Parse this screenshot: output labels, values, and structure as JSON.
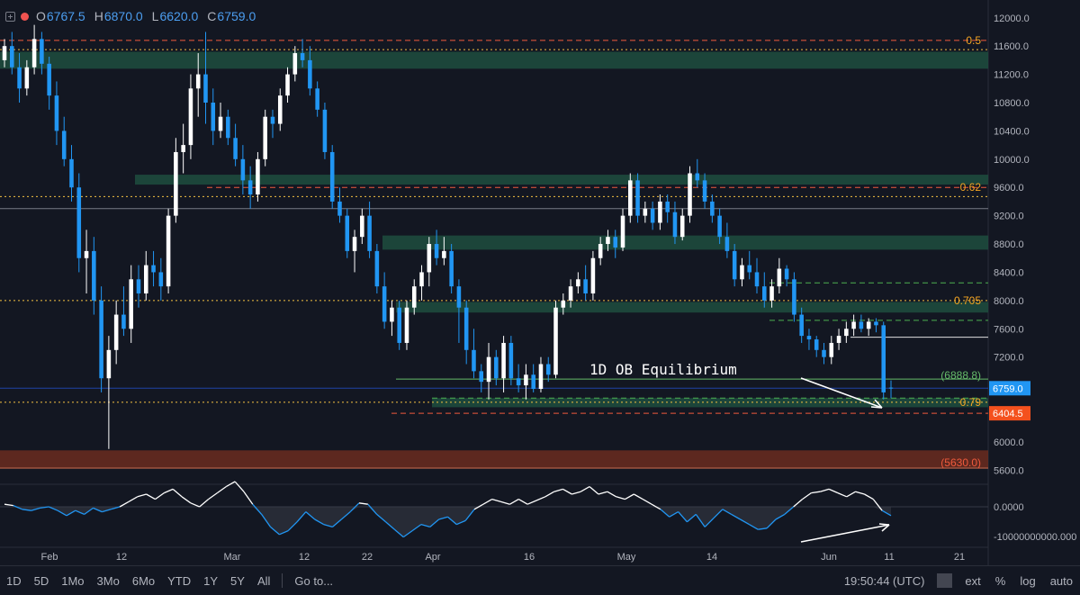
{
  "header": {
    "open_label": "O",
    "open": "6767.5",
    "high_label": "H",
    "high": "6870.0",
    "low_label": "L",
    "low": "6620.0",
    "close_label": "C",
    "close": "6759.0"
  },
  "colors": {
    "background": "#131722",
    "bull": "#ffffff",
    "bear": "#2196f3",
    "zone_green": "#1e4d3e",
    "zone_red": "#6b2b1e",
    "dash_red": "#f05a3c",
    "dot_yellow": "#f5c242",
    "dash_green": "#4caf50",
    "text_axis": "#b2b5be",
    "label_orange": "#f5a623",
    "label_green": "#66bb6a",
    "label_red": "#ef5a3c",
    "price_tag_blue": "#2196f3",
    "price_tag_orange": "#f4511e"
  },
  "chart_data": {
    "type": "candlestick",
    "y_ticks": [
      "12000.0",
      "11600.0",
      "11200.0",
      "10800.0",
      "10400.0",
      "10000.0",
      "9600.0",
      "9200.0",
      "8800.0",
      "8400.0",
      "8000.0",
      "7600.0",
      "7200.0",
      "6800.0",
      "6400.0",
      "6000.0",
      "5600.0"
    ],
    "y_range": [
      5400,
      12150
    ],
    "x_labels": [
      "Feb",
      "12",
      "Mar",
      "12",
      "22",
      "Apr",
      "16",
      "May",
      "14",
      "Jun",
      "11",
      "21"
    ],
    "annotation": "1D OB Equilibrium",
    "fib_levels": [
      {
        "label": "0.5",
        "price": 11680
      },
      {
        "label": "0.62",
        "price": 9600
      },
      {
        "label": "0.705",
        "price": 8000
      },
      {
        "label": "0.79",
        "price": 6560
      }
    ],
    "level_labels": [
      {
        "label": "(6888.8)",
        "price": 6888.8
      },
      {
        "label": "(5630.0)",
        "price": 5630
      }
    ],
    "price_tags": [
      {
        "label": "6759.0",
        "price": 6759
      },
      {
        "label": "6404.5",
        "price": 6404.5
      }
    ],
    "demand_zones": [
      {
        "from": 11280,
        "to": 11520
      },
      {
        "from": 9640,
        "to": 9780
      },
      {
        "from": 8720,
        "to": 8920
      },
      {
        "from": 7830,
        "to": 7980
      },
      {
        "from": 6490,
        "to": 6620
      }
    ],
    "supply_zone": {
      "from": 5620,
      "to": 5880
    },
    "candles_ohlc": [
      [
        11400,
        11700,
        11300,
        11600
      ],
      [
        11600,
        11800,
        11200,
        11300
      ],
      [
        11300,
        11500,
        10800,
        11000
      ],
      [
        11000,
        11400,
        10900,
        11300
      ],
      [
        11300,
        11900,
        11200,
        11700
      ],
      [
        11700,
        11800,
        11200,
        11350
      ],
      [
        11350,
        11450,
        10700,
        10900
      ],
      [
        10900,
        11100,
        10200,
        10400
      ],
      [
        10400,
        10600,
        9900,
        10000
      ],
      [
        10000,
        10200,
        9400,
        9600
      ],
      [
        9600,
        9800,
        8400,
        8600
      ],
      [
        8600,
        9000,
        8100,
        8700
      ],
      [
        8700,
        8900,
        7800,
        8000
      ],
      [
        8000,
        8200,
        6700,
        6900
      ],
      [
        6900,
        7500,
        5900,
        7300
      ],
      [
        7300,
        8000,
        7100,
        7800
      ],
      [
        7800,
        8200,
        7500,
        7600
      ],
      [
        7600,
        8500,
        7400,
        8300
      ],
      [
        8300,
        8500,
        7900,
        8100
      ],
      [
        8100,
        8700,
        8000,
        8500
      ],
      [
        8500,
        8700,
        8200,
        8400
      ],
      [
        8400,
        8600,
        8000,
        8200
      ],
      [
        8200,
        9300,
        8100,
        9200
      ],
      [
        9200,
        10300,
        9100,
        10100
      ],
      [
        10100,
        10500,
        9800,
        10200
      ],
      [
        10200,
        11200,
        10000,
        11000
      ],
      [
        11000,
        11500,
        10600,
        11200
      ],
      [
        11200,
        11800,
        10500,
        10800
      ],
      [
        10800,
        11000,
        10200,
        10400
      ],
      [
        10400,
        10800,
        10300,
        10600
      ],
      [
        10600,
        10700,
        10200,
        10300
      ],
      [
        10300,
        10500,
        9900,
        10000
      ],
      [
        10000,
        10200,
        9500,
        9700
      ],
      [
        9700,
        9900,
        9300,
        9500
      ],
      [
        9500,
        10100,
        9400,
        10000
      ],
      [
        10000,
        10700,
        9900,
        10600
      ],
      [
        10600,
        10700,
        10300,
        10500
      ],
      [
        10500,
        11000,
        10400,
        10900
      ],
      [
        10900,
        11300,
        10800,
        11200
      ],
      [
        11200,
        11600,
        11100,
        11500
      ],
      [
        11500,
        11700,
        11300,
        11400
      ],
      [
        11400,
        11600,
        10900,
        11000
      ],
      [
        11000,
        11100,
        10600,
        10700
      ],
      [
        10700,
        10800,
        10000,
        10100
      ],
      [
        10100,
        10200,
        9300,
        9400
      ],
      [
        9400,
        9600,
        9100,
        9200
      ],
      [
        9200,
        9300,
        8600,
        8700
      ],
      [
        8700,
        9000,
        8400,
        8900
      ],
      [
        8900,
        9300,
        8800,
        9200
      ],
      [
        9200,
        9400,
        8600,
        8700
      ],
      [
        8700,
        8800,
        8100,
        8200
      ],
      [
        8200,
        8400,
        7600,
        7700
      ],
      [
        7700,
        8000,
        7500,
        7900
      ],
      [
        7900,
        8000,
        7300,
        7400
      ],
      [
        7400,
        8000,
        7300,
        7900
      ],
      [
        7900,
        8300,
        7800,
        8200
      ],
      [
        8200,
        8500,
        8000,
        8400
      ],
      [
        8400,
        8900,
        8200,
        8800
      ],
      [
        8800,
        9000,
        8500,
        8600
      ],
      [
        8600,
        8900,
        8500,
        8700
      ],
      [
        8700,
        8800,
        8100,
        8200
      ],
      [
        8200,
        8300,
        7400,
        7900
      ],
      [
        7900,
        8000,
        7100,
        7300
      ],
      [
        7300,
        7600,
        6900,
        7000
      ],
      [
        7000,
        7100,
        6700,
        6850
      ],
      [
        6850,
        7400,
        6600,
        7200
      ],
      [
        7200,
        7300,
        6800,
        6900
      ],
      [
        6900,
        7500,
        6700,
        7400
      ],
      [
        7400,
        7500,
        6800,
        6900
      ],
      [
        6900,
        7100,
        6700,
        6800
      ],
      [
        6800,
        7100,
        6600,
        6950
      ],
      [
        6950,
        7100,
        6700,
        6750
      ],
      [
        6750,
        7200,
        6700,
        7100
      ],
      [
        7100,
        7200,
        6850,
        6950
      ],
      [
        6950,
        8000,
        6900,
        7900
      ],
      [
        7900,
        8100,
        7800,
        8000
      ],
      [
        8000,
        8300,
        7900,
        8200
      ],
      [
        8200,
        8400,
        8100,
        8300
      ],
      [
        8300,
        8500,
        8000,
        8100
      ],
      [
        8100,
        8700,
        8000,
        8600
      ],
      [
        8600,
        8900,
        8500,
        8800
      ],
      [
        8800,
        9000,
        8700,
        8900
      ],
      [
        8900,
        9000,
        8600,
        8750
      ],
      [
        8750,
        9300,
        8700,
        9200
      ],
      [
        9200,
        9800,
        9100,
        9700
      ],
      [
        9700,
        9800,
        9100,
        9200
      ],
      [
        9200,
        9400,
        9100,
        9300
      ],
      [
        9300,
        9400,
        9000,
        9100
      ],
      [
        9100,
        9500,
        9000,
        9400
      ],
      [
        9400,
        9500,
        9100,
        9250
      ],
      [
        9250,
        9400,
        8800,
        8900
      ],
      [
        8900,
        9300,
        8850,
        9200
      ],
      [
        9200,
        9900,
        9100,
        9800
      ],
      [
        9800,
        10000,
        9600,
        9700
      ],
      [
        9700,
        9800,
        9300,
        9400
      ],
      [
        9400,
        9500,
        9100,
        9200
      ],
      [
        9200,
        9300,
        8800,
        8900
      ],
      [
        8900,
        9100,
        8600,
        8700
      ],
      [
        8700,
        8800,
        8200,
        8300
      ],
      [
        8300,
        8600,
        8200,
        8500
      ],
      [
        8500,
        8700,
        8300,
        8400
      ],
      [
        8400,
        8600,
        8100,
        8200
      ],
      [
        8200,
        8400,
        7900,
        8000
      ],
      [
        8000,
        8300,
        7900,
        8200
      ],
      [
        8200,
        8600,
        8100,
        8450
      ],
      [
        8450,
        8500,
        8200,
        8300
      ],
      [
        8300,
        8400,
        7700,
        7800
      ],
      [
        7800,
        7900,
        7400,
        7500
      ],
      [
        7500,
        7600,
        7300,
        7450
      ],
      [
        7450,
        7500,
        7200,
        7300
      ],
      [
        7300,
        7400,
        7100,
        7200
      ],
      [
        7200,
        7500,
        7100,
        7400
      ],
      [
        7400,
        7600,
        7300,
        7500
      ],
      [
        7500,
        7700,
        7400,
        7600
      ],
      [
        7600,
        7800,
        7500,
        7700
      ],
      [
        7700,
        7800,
        7550,
        7600
      ],
      [
        7600,
        7750,
        7500,
        7700
      ],
      [
        7700,
        7750,
        7550,
        7650
      ],
      [
        7650,
        7700,
        6600,
        6700
      ],
      [
        6767.5,
        6870,
        6620,
        6759
      ]
    ],
    "oscillator": {
      "y_ticks": [
        "0.0000",
        "-10000000000.000"
      ],
      "values": [
        0.1,
        0.05,
        -0.1,
        -0.15,
        -0.05,
        0.0,
        -0.15,
        -0.35,
        -0.15,
        -0.3,
        -0.05,
        -0.2,
        -0.1,
        0.0,
        0.2,
        0.4,
        0.5,
        0.3,
        0.55,
        0.7,
        0.4,
        0.15,
        0.0,
        0.3,
        0.55,
        0.8,
        1.0,
        0.6,
        0.1,
        -0.3,
        -0.8,
        -1.1,
        -0.95,
        -0.6,
        -0.2,
        -0.5,
        -0.7,
        -0.8,
        -0.5,
        -0.2,
        0.15,
        0.1,
        -0.3,
        -0.6,
        -0.9,
        -1.2,
        -0.95,
        -0.7,
        -0.8,
        -0.5,
        -0.4,
        -0.7,
        -0.55,
        -0.1,
        0.1,
        0.3,
        0.2,
        0.1,
        0.3,
        0.1,
        0.25,
        0.4,
        0.6,
        0.7,
        0.5,
        0.6,
        0.8,
        0.5,
        0.6,
        0.4,
        0.3,
        0.5,
        0.3,
        0.1,
        -0.1,
        -0.4,
        -0.2,
        -0.6,
        -0.3,
        -0.8,
        -0.45,
        -0.1,
        -0.3,
        -0.5,
        -0.7,
        -0.9,
        -0.85,
        -0.5,
        -0.3,
        0.0,
        0.3,
        0.55,
        0.6,
        0.7,
        0.55,
        0.4,
        0.6,
        0.5,
        0.3,
        -0.15,
        -0.35
      ]
    }
  },
  "bottombar": {
    "ranges": [
      "1D",
      "5D",
      "1Mo",
      "3Mo",
      "6Mo",
      "YTD",
      "1Y",
      "5Y",
      "All"
    ],
    "goto": "Go to...",
    "time": "19:50:44 (UTC)",
    "ext": "ext",
    "percent": "%",
    "log": "log",
    "auto": "auto"
  }
}
